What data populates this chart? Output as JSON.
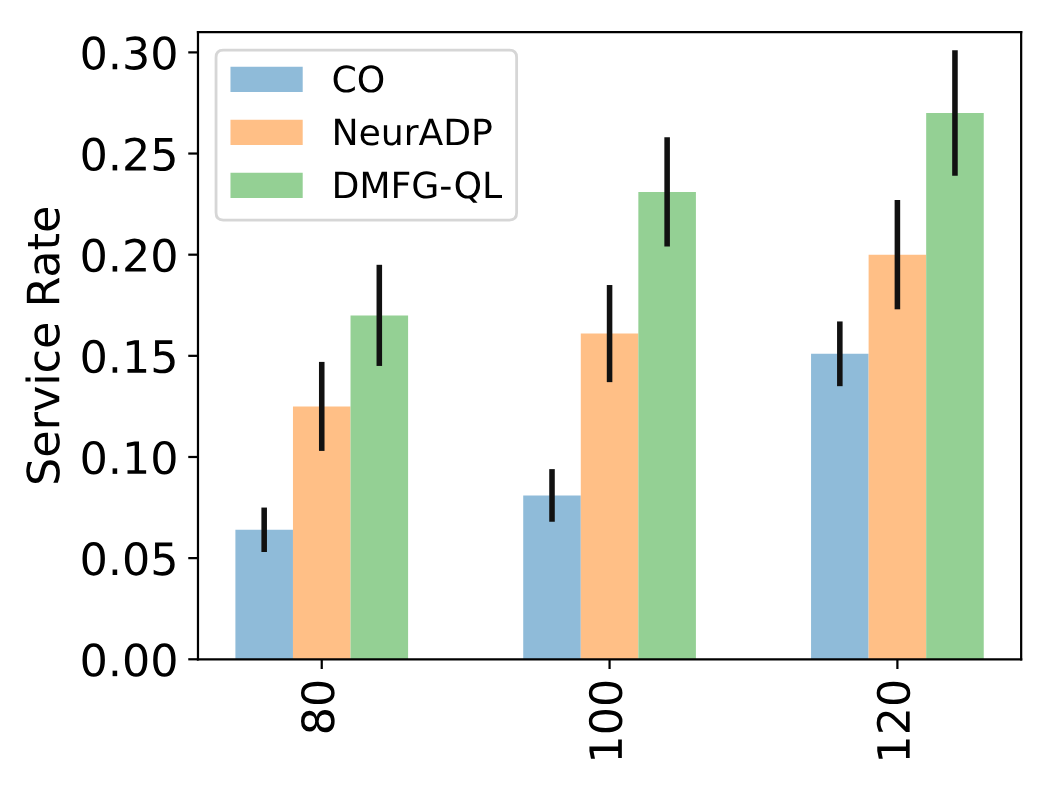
{
  "chart_data": {
    "type": "bar",
    "ylabel": "Service Rate",
    "categories": [
      "80",
      "100",
      "120"
    ],
    "series": [
      {
        "name": "CO",
        "color": "#8fbbd9",
        "values": [
          0.064,
          0.081,
          0.151
        ],
        "errors": [
          0.011,
          0.013,
          0.016
        ]
      },
      {
        "name": "NeurADP",
        "color": "#ffbf86",
        "values": [
          0.125,
          0.161,
          0.2
        ],
        "errors": [
          0.022,
          0.024,
          0.027
        ]
      },
      {
        "name": "DMFG-QL",
        "color": "#94d094",
        "values": [
          0.17,
          0.231,
          0.27
        ],
        "errors": [
          0.025,
          0.027,
          0.031
        ]
      }
    ],
    "ylim": [
      0,
      0.31
    ],
    "yticks": [
      {
        "value": 0,
        "label": "0.00"
      },
      {
        "value": 0.05,
        "label": "0.05"
      },
      {
        "value": 0.1,
        "label": "0.10"
      },
      {
        "value": 0.15,
        "label": "0.15"
      },
      {
        "value": 0.2,
        "label": "0.20"
      },
      {
        "value": 0.25,
        "label": "0.25"
      },
      {
        "value": 0.3,
        "label": "0.30"
      }
    ],
    "legend": "top left",
    "grid": false
  }
}
